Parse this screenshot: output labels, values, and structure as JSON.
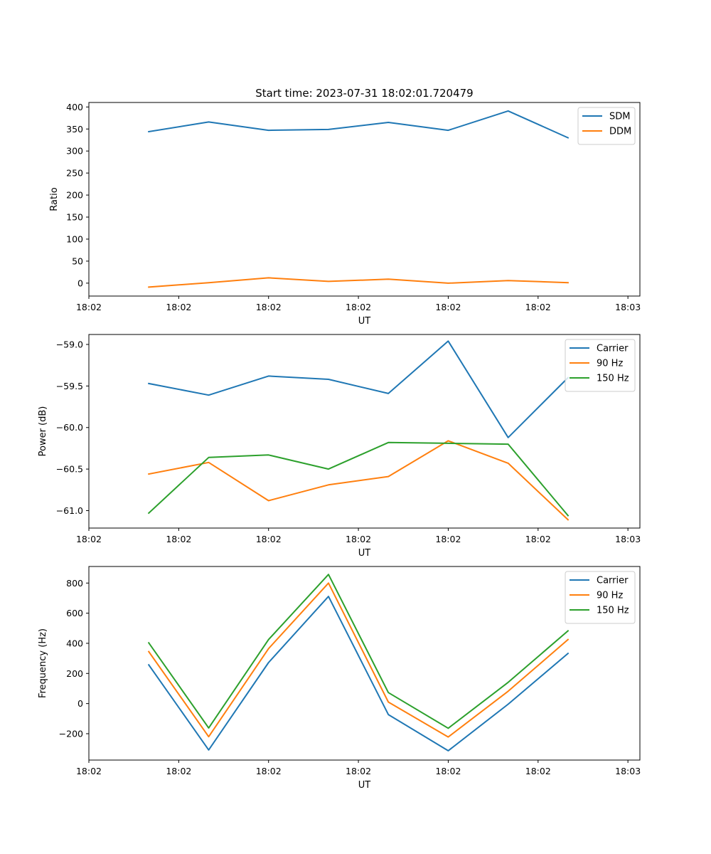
{
  "figure_title": "Start time: 2023-07-31 18:02:01.720479",
  "chart_data": [
    {
      "type": "line",
      "title": "Start time: 2023-07-31 18:02:01.720479",
      "xlabel": "UT",
      "ylabel": "Ratio",
      "x": [
        1,
        2,
        3,
        4,
        5,
        6,
        7,
        8
      ],
      "xlim": [
        0,
        9.2
      ],
      "x_ticks": [
        0,
        1.5,
        3,
        4.5,
        6,
        7.5,
        9
      ],
      "x_tick_labels": [
        "18:02",
        "18:02",
        "18:02",
        "18:02",
        "18:02",
        "18:02",
        "18:03"
      ],
      "ylim": [
        -29.3,
        410.2
      ],
      "y_ticks": [
        0,
        50,
        100,
        150,
        200,
        250,
        300,
        350,
        400
      ],
      "y_tick_labels": [
        "0",
        "50",
        "100",
        "150",
        "200",
        "250",
        "300",
        "350",
        "400"
      ],
      "legend_position": "top-right",
      "series": [
        {
          "name": "SDM",
          "color": "#1f77b4",
          "values": [
            344,
            366,
            347,
            349,
            365,
            347,
            391,
            330
          ]
        },
        {
          "name": "DDM",
          "color": "#ff7f0e",
          "values": [
            -9,
            1,
            12,
            4,
            9,
            0,
            6,
            1
          ]
        }
      ]
    },
    {
      "type": "line",
      "title": "",
      "xlabel": "UT",
      "ylabel": "Power (dB)",
      "x": [
        1,
        2,
        3,
        4,
        5,
        6,
        7,
        8
      ],
      "xlim": [
        0,
        9.2
      ],
      "x_ticks": [
        0,
        1.5,
        3,
        4.5,
        6,
        7.5,
        9
      ],
      "x_tick_labels": [
        "18:02",
        "18:02",
        "18:02",
        "18:02",
        "18:02",
        "18:02",
        "18:03"
      ],
      "ylim": [
        -61.21,
        -58.88
      ],
      "y_ticks": [
        -61.0,
        -60.5,
        -60.0,
        -59.5,
        -59.0
      ],
      "y_tick_labels": [
        "−61.0",
        "−60.5",
        "−60.0",
        "−59.5",
        "−59.0"
      ],
      "legend_position": "top-right",
      "series": [
        {
          "name": "Carrier",
          "color": "#1f77b4",
          "values": [
            -59.47,
            -59.61,
            -59.38,
            -59.42,
            -59.59,
            -58.96,
            -60.12,
            -59.4
          ]
        },
        {
          "name": "90 Hz",
          "color": "#ff7f0e",
          "values": [
            -60.56,
            -60.42,
            -60.88,
            -60.69,
            -60.59,
            -60.16,
            -60.43,
            -61.11
          ]
        },
        {
          "name": "150 Hz",
          "color": "#2ca02c",
          "values": [
            -61.03,
            -60.36,
            -60.33,
            -60.5,
            -60.18,
            -60.19,
            -60.2,
            -61.06
          ]
        }
      ]
    },
    {
      "type": "line",
      "title": "",
      "xlabel": "UT",
      "ylabel": "Frequency (Hz)",
      "x": [
        1,
        2,
        3,
        4,
        5,
        6,
        7,
        8
      ],
      "xlim": [
        0,
        9.2
      ],
      "x_ticks": [
        0,
        1.5,
        3,
        4.5,
        6,
        7.5,
        9
      ],
      "x_tick_labels": [
        "18:02",
        "18:02",
        "18:02",
        "18:02",
        "18:02",
        "18:02",
        "18:03"
      ],
      "ylim": [
        -375,
        910
      ],
      "y_ticks": [
        -200,
        0,
        200,
        400,
        600,
        800
      ],
      "y_tick_labels": [
        "−200",
        "0",
        "200",
        "400",
        "600",
        "800"
      ],
      "legend_position": "top-right",
      "series": [
        {
          "name": "Carrier",
          "color": "#1f77b4",
          "values": [
            257,
            -308,
            272,
            711,
            -73,
            -313,
            -4,
            333
          ]
        },
        {
          "name": "90 Hz",
          "color": "#ff7f0e",
          "values": [
            345,
            -220,
            365,
            800,
            10,
            -222,
            82,
            425
          ]
        },
        {
          "name": "150 Hz",
          "color": "#2ca02c",
          "values": [
            403,
            -162,
            425,
            857,
            73,
            -164,
            141,
            483
          ]
        }
      ]
    }
  ]
}
